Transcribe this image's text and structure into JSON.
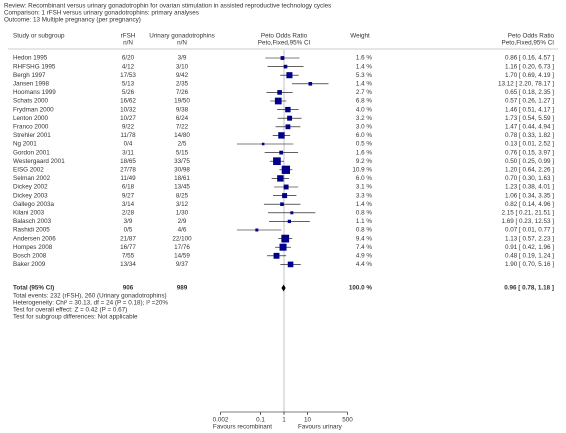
{
  "chart_data": {
    "type": "forest",
    "log_x": true,
    "review": "Review:  Recombinant versus urinary gonadotrophin for ovarian stimulation in assisted reproductive technology cycles",
    "comparison": "Comparison:  1 rFSH versus urinary gonadotrophins: primary analyses",
    "outcome": "Outcome:  13 Multiple pregnancy (per pregnancy)",
    "columns": {
      "study": "Study or subgroup",
      "group1": "rFSH",
      "group1_sub": "n/N",
      "group2": "Urinary gonadotrophins",
      "group2_sub": "n/N",
      "plot": "Peto Odds Ratio",
      "plot_sub": "Peto,Fixed,95% CI",
      "weight": "Weight",
      "effect": "Peto Odds Ratio",
      "effect_sub": "Peto,Fixed,95% CI"
    },
    "square_color": "#00008b",
    "studies": [
      {
        "name": "Hedon 1995",
        "group1": "6/20",
        "group2": "3/9",
        "weight": 1.6,
        "weight_label": "1.6 %",
        "or": 0.86,
        "lo": 0.16,
        "hi": 4.57,
        "or_label": "0.86 [ 0.16, 4.57 ]"
      },
      {
        "name": "RHFSHG 1995",
        "group1": "4/12",
        "group2": "3/10",
        "weight": 1.4,
        "weight_label": "1.4 %",
        "or": 1.16,
        "lo": 0.2,
        "hi": 6.73,
        "or_label": "1.16 [ 0.20, 6.73 ]"
      },
      {
        "name": "Bergh 1997",
        "group1": "17/53",
        "group2": "9/42",
        "weight": 5.3,
        "weight_label": "5.3 %",
        "or": 1.7,
        "lo": 0.69,
        "hi": 4.19,
        "or_label": "1.70 [ 0.69, 4.19 ]"
      },
      {
        "name": "Jansen 1998",
        "group1": "5/13",
        "group2": "2/35",
        "weight": 1.4,
        "weight_label": "1.4 %",
        "or": 13.12,
        "lo": 2.2,
        "hi": 78.17,
        "or_label": "13.12 [ 2.20, 78.17 ]"
      },
      {
        "name": "Hoomans 1999",
        "group1": "5/26",
        "group2": "7/26",
        "weight": 2.7,
        "weight_label": "2.7 %",
        "or": 0.65,
        "lo": 0.18,
        "hi": 2.35,
        "or_label": "0.65 [ 0.18, 2.35 ]"
      },
      {
        "name": "Schats 2000",
        "group1": "16/62",
        "group2": "19/50",
        "weight": 6.8,
        "weight_label": "6.8 %",
        "or": 0.57,
        "lo": 0.26,
        "hi": 1.27,
        "or_label": "0.57 [ 0.26, 1.27 ]"
      },
      {
        "name": "Frydman 2000",
        "group1": "10/32",
        "group2": "9/38",
        "weight": 4.0,
        "weight_label": "4.0 %",
        "or": 1.46,
        "lo": 0.51,
        "hi": 4.17,
        "or_label": "1.46 [ 0.51, 4.17 ]"
      },
      {
        "name": "Lenton 2000",
        "group1": "10/27",
        "group2": "6/24",
        "weight": 3.2,
        "weight_label": "3.2 %",
        "or": 1.73,
        "lo": 0.54,
        "hi": 5.59,
        "or_label": "1.73 [ 0.54, 5.59 ]"
      },
      {
        "name": "Franco 2000",
        "group1": "9/22",
        "group2": "7/22",
        "weight": 3.0,
        "weight_label": "3.0 %",
        "or": 1.47,
        "lo": 0.44,
        "hi": 4.94,
        "or_label": "1.47 [ 0.44, 4.94 ]"
      },
      {
        "name": "Strehler 2001",
        "group1": "11/78",
        "group2": "14/80",
        "weight": 6.0,
        "weight_label": "6.0 %",
        "or": 0.78,
        "lo": 0.33,
        "hi": 1.82,
        "or_label": "0.78 [ 0.33, 1.82 ]"
      },
      {
        "name": "Ng 2001",
        "group1": "0/4",
        "group2": "2/5",
        "weight": 0.5,
        "weight_label": "0.5 %",
        "or": 0.13,
        "lo": 0.01,
        "hi": 2.52,
        "or_label": "0.13 [ 0.01, 2.52 ]"
      },
      {
        "name": "Gordon 2001",
        "group1": "3/11",
        "group2": "5/15",
        "weight": 1.6,
        "weight_label": "1.6 %",
        "or": 0.76,
        "lo": 0.15,
        "hi": 3.97,
        "or_label": "0.76 [ 0.15, 3.97 ]"
      },
      {
        "name": "Westergaard 2001",
        "group1": "18/65",
        "group2": "33/75",
        "weight": 9.2,
        "weight_label": "9.2 %",
        "or": 0.5,
        "lo": 0.25,
        "hi": 0.99,
        "or_label": "0.50 [ 0.25, 0.99 ]"
      },
      {
        "name": "EISG 2002",
        "group1": "27/78",
        "group2": "30/98",
        "weight": 10.9,
        "weight_label": "10.9 %",
        "or": 1.2,
        "lo": 0.64,
        "hi": 2.26,
        "or_label": "1.20 [ 0.64, 2.26 ]"
      },
      {
        "name": "Selman 2002",
        "group1": "11/49",
        "group2": "18/61",
        "weight": 6.0,
        "weight_label": "6.0 %",
        "or": 0.7,
        "lo": 0.3,
        "hi": 1.63,
        "or_label": "0.70 [ 0.30, 1.63 ]"
      },
      {
        "name": "Dickey 2002",
        "group1": "6/18",
        "group2": "13/45",
        "weight": 3.1,
        "weight_label": "3.1 %",
        "or": 1.23,
        "lo": 0.38,
        "hi": 4.01,
        "or_label": "1.23 [ 0.38, 4.01 ]"
      },
      {
        "name": "Dickey 2003",
        "group1": "9/27",
        "group2": "8/25",
        "weight": 3.3,
        "weight_label": "3.3 %",
        "or": 1.06,
        "lo": 0.34,
        "hi": 3.35,
        "or_label": "1.06 [ 0.34, 3.35 ]"
      },
      {
        "name": "Gallego 2003a",
        "group1": "3/14",
        "group2": "3/12",
        "weight": 1.4,
        "weight_label": "1.4 %",
        "or": 0.82,
        "lo": 0.14,
        "hi": 4.96,
        "or_label": "0.82 [ 0.14, 4.96 ]"
      },
      {
        "name": "Kilani 2003",
        "group1": "2/28",
        "group2": "1/30",
        "weight": 0.8,
        "weight_label": "0.8 %",
        "or": 2.15,
        "lo": 0.21,
        "hi": 21.51,
        "or_label": "2.15 [ 0.21, 21.51 ]"
      },
      {
        "name": "Balasch 2003",
        "group1": "3/9",
        "group2": "2/9",
        "weight": 1.1,
        "weight_label": "1.1 %",
        "or": 1.69,
        "lo": 0.23,
        "hi": 12.53,
        "or_label": "1.69 [ 0.23, 12.53 ]"
      },
      {
        "name": "Rashidi 2005",
        "group1": "0/5",
        "group2": "4/6",
        "weight": 0.8,
        "weight_label": "0.8 %",
        "or": 0.07,
        "lo": 0.01,
        "hi": 0.77,
        "or_label": "0.07 [ 0.01, 0.77 ]"
      },
      {
        "name": "Andersen 2006",
        "group1": "21/87",
        "group2": "22/100",
        "weight": 9.4,
        "weight_label": "9.4 %",
        "or": 1.13,
        "lo": 0.57,
        "hi": 2.23,
        "or_label": "1.13 [ 0.57, 2.23 ]"
      },
      {
        "name": "Hompes 2008",
        "group1": "16/77",
        "group2": "17/76",
        "weight": 7.4,
        "weight_label": "7.4 %",
        "or": 0.91,
        "lo": 0.42,
        "hi": 1.96,
        "or_label": "0.91 [ 0.42, 1.96 ]"
      },
      {
        "name": "Bosch 2008",
        "group1": "7/55",
        "group2": "14/59",
        "weight": 4.9,
        "weight_label": "4.9 %",
        "or": 0.48,
        "lo": 0.19,
        "hi": 1.24,
        "or_label": "0.48 [ 0.19, 1.24 ]"
      },
      {
        "name": "Baker 2009",
        "group1": "13/34",
        "group2": "9/37",
        "weight": 4.4,
        "weight_label": "4.4 %",
        "or": 1.9,
        "lo": 0.7,
        "hi": 5.16,
        "or_label": "1.90 [ 0.70, 5.16 ]"
      }
    ],
    "total": {
      "name": "Total (95% CI)",
      "group1": 906,
      "group2": 989,
      "weight": 100.0,
      "weight_label": "100.0 %",
      "or": 0.96,
      "lo": 0.78,
      "hi": 1.18,
      "or_label": "0.96 [ 0.78, 1.18 ]"
    },
    "notes": [
      "Total events: 232 (rFSH), 260 (Urinary gonadotrophins)",
      "Heterogeneity: Chi² = 30.13, df = 24 (P = 0.18); I² =20%",
      "Test for overall effect: Z = 0.42 (P = 0.67)",
      "Test for subgroup differences: Not applicable"
    ],
    "xlim": [
      0.002,
      500
    ],
    "xticks": [
      0.002,
      0.1,
      1,
      10,
      500
    ],
    "favours_left": "Favours recombinant",
    "favours_right": "Favours urinary"
  }
}
